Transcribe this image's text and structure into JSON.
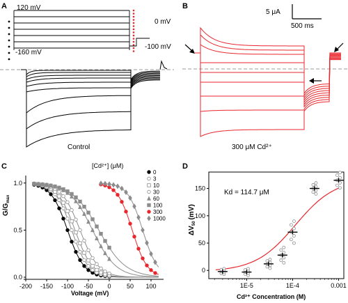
{
  "panels": {
    "A": {
      "letter": "A",
      "protocol": {
        "top": "120 mV",
        "bottom": "-160 mV",
        "hold": "0 mV",
        "post": "-100 mV"
      },
      "label": "Control"
    },
    "B": {
      "letter": "B",
      "scale_current": "5 μA",
      "scale_time": "500 ms",
      "label": "300 μM Cd²⁺"
    },
    "C": {
      "letter": "C",
      "legend_title": "[Cd²⁺] (μM)",
      "legend_items": [
        "0",
        "3",
        "10",
        "30",
        "60",
        "100",
        "300",
        "1000"
      ],
      "ylabel": "G/G",
      "ylabel_sub": "max",
      "xlabel": "Voltage (mV)",
      "xticks": [
        "-200",
        "-150",
        "-100",
        "-50",
        "0",
        "50",
        "100"
      ],
      "yticks": [
        "0.0",
        "0.5",
        "1.0"
      ]
    },
    "D": {
      "letter": "D",
      "annotation": "Kd = 114.7 μM",
      "ylabel": "ΔV",
      "ylabel_sub": "50",
      "ylabel_unit": "(mV)",
      "xlabel": "Cd²⁺ Concentration (M)",
      "xticks": [
        "1E-5",
        "1E-4",
        "0.001"
      ],
      "yticks": [
        "0",
        "50",
        "100",
        "150"
      ]
    }
  },
  "colors": {
    "control": "#000000",
    "cd": "#e8262c",
    "gray": "#8c8c8c",
    "dash": "#999999"
  },
  "chart_data": [
    {
      "type": "scatter",
      "panel": "C",
      "xlabel": "Voltage (mV)",
      "ylabel": "G/Gmax",
      "xlim": [
        -200,
        130
      ],
      "ylim": [
        0,
        1.05
      ],
      "series": [
        {
          "name": "0",
          "v50": -100,
          "slope": 20
        },
        {
          "name": "3",
          "v50": -90,
          "slope": 20
        },
        {
          "name": "10",
          "v50": -82,
          "slope": 21
        },
        {
          "name": "30",
          "v50": -70,
          "slope": 22
        },
        {
          "name": "60",
          "v50": -40,
          "slope": 28
        },
        {
          "name": "100",
          "v50": -25,
          "slope": 32
        },
        {
          "name": "300",
          "v50": 55,
          "slope": 18
        },
        {
          "name": "1000",
          "v50": 80,
          "slope": 18
        }
      ]
    },
    {
      "type": "scatter",
      "panel": "D",
      "xlabel": "Cd²⁺ Concentration (M)",
      "ylabel": "ΔV50 (mV)",
      "xscale": "log",
      "xlim": [
        1.5e-06,
        0.0013
      ],
      "ylim": [
        -15,
        180
      ],
      "kd": 0.0001147,
      "vmax": 168,
      "x": [
        3e-06,
        1e-05,
        3e-05,
        6e-05,
        0.0001,
        0.0003,
        0.001
      ],
      "means": [
        -2,
        -3,
        12,
        28,
        70,
        150,
        165
      ]
    }
  ]
}
